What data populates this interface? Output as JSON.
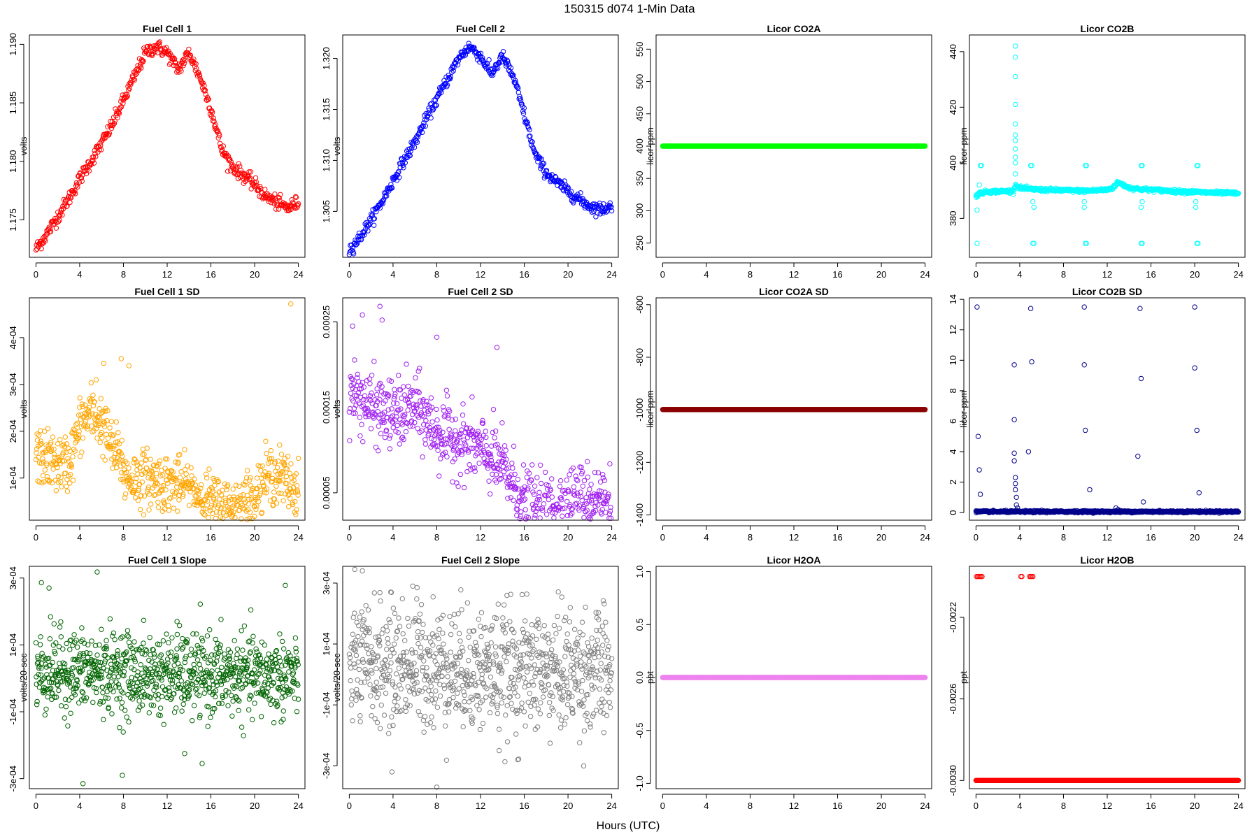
{
  "figure": {
    "title": "150315   d074   1-Min Data",
    "xlabel": "Hours (UTC)"
  },
  "chart_data": [
    {
      "type": "scatter",
      "title": "Fuel Cell 1",
      "ylabel": "volts",
      "color": "#ff0000",
      "xlim": [
        -0.6,
        24.6
      ],
      "ylim": [
        1.1718,
        1.1908
      ],
      "xticks": [
        0,
        4,
        8,
        12,
        16,
        20,
        24
      ],
      "yticks": [
        1.175,
        1.18,
        1.185,
        1.19
      ],
      "yticklabels": [
        "1.175",
        "1.180",
        "1.185",
        "1.190"
      ],
      "curve": {
        "x": [
          0,
          1,
          2,
          3,
          4,
          5,
          6,
          7,
          8,
          9,
          10,
          11,
          12,
          13,
          14,
          15,
          16,
          17,
          18,
          19,
          20,
          21,
          22,
          23,
          24
        ],
        "y": [
          1.1725,
          1.1738,
          1.1753,
          1.1768,
          1.1785,
          1.18,
          1.1815,
          1.1832,
          1.1852,
          1.1872,
          1.1893,
          1.1898,
          1.1893,
          1.1878,
          1.1893,
          1.1872,
          1.1845,
          1.181,
          1.1795,
          1.1788,
          1.178,
          1.177,
          1.1765,
          1.176,
          1.1765
        ]
      },
      "noise": 0.0003,
      "n": 480
    },
    {
      "type": "scatter",
      "title": "Fuel Cell 2",
      "ylabel": "volts",
      "color": "#0000ff",
      "xlim": [
        -0.6,
        24.6
      ],
      "ylim": [
        1.3005,
        1.3223
      ],
      "xticks": [
        0,
        4,
        8,
        12,
        16,
        20,
        24
      ],
      "yticks": [
        1.305,
        1.31,
        1.315,
        1.32
      ],
      "yticklabels": [
        "1.305",
        "1.310",
        "1.315",
        "1.320"
      ],
      "curve": {
        "x": [
          0,
          1,
          2,
          3,
          4,
          5,
          6,
          7,
          8,
          9,
          10,
          11,
          12,
          13,
          14,
          15,
          16,
          17,
          18,
          19,
          20,
          21,
          22,
          23,
          24
        ],
        "y": [
          1.3012,
          1.3025,
          1.3042,
          1.306,
          1.308,
          1.31,
          1.3118,
          1.314,
          1.316,
          1.318,
          1.32,
          1.3212,
          1.3202,
          1.3185,
          1.3202,
          1.3182,
          1.3145,
          1.3105,
          1.3088,
          1.3078,
          1.307,
          1.3062,
          1.3055,
          1.3052,
          1.3055
        ]
      },
      "noise": 0.0003,
      "n": 480
    },
    {
      "type": "scatter",
      "title": "Licor CO2A",
      "ylabel": "licor-ppm",
      "color": "#00ff00",
      "xlim": [
        -0.6,
        24.6
      ],
      "ylim": [
        228,
        572
      ],
      "xticks": [
        0,
        4,
        8,
        12,
        16,
        20,
        24
      ],
      "yticks": [
        250,
        300,
        350,
        400,
        450,
        500,
        550
      ],
      "yticklabels": [
        "250",
        "300",
        "350",
        "400",
        "450",
        "500",
        "550"
      ],
      "curve": {
        "x": [
          0,
          24
        ],
        "y": [
          400,
          400
        ]
      },
      "noise": 0,
      "n": 480
    },
    {
      "type": "scatter",
      "title": "Licor CO2B",
      "ylabel": "licor-ppm",
      "color": "#00ffff",
      "xlim": [
        -0.6,
        24.6
      ],
      "ylim": [
        366,
        446
      ],
      "xticks": [
        0,
        4,
        8,
        12,
        16,
        20,
        24
      ],
      "yticks": [
        380,
        400,
        420,
        440
      ],
      "yticklabels": [
        "380",
        "400",
        "420",
        "440"
      ],
      "curve": {
        "x": [
          0,
          0.3,
          1,
          2,
          3.4,
          3.6,
          4,
          5,
          6,
          8,
          10,
          12,
          12.5,
          13,
          13.5,
          14,
          15,
          16,
          18,
          20,
          22,
          24
        ],
        "y": [
          388,
          389,
          389.6,
          389.7,
          389.8,
          392,
          391,
          390.5,
          390.3,
          390.1,
          389.9,
          390.3,
          391,
          393,
          392,
          391,
          390.5,
          390.3,
          389.8,
          389.5,
          389.2,
          389
        ],
        "curve_note": ""
      },
      "noise": 0.3,
      "n": 600,
      "extras": [
        [
          0.1,
          371
        ],
        [
          0.1,
          383
        ],
        [
          0.3,
          392
        ],
        [
          0.4,
          399
        ],
        [
          0.5,
          399
        ],
        [
          3.6,
          396
        ],
        [
          3.6,
          400
        ],
        [
          3.6,
          402
        ],
        [
          3.6,
          405
        ],
        [
          3.6,
          408
        ],
        [
          3.6,
          410
        ],
        [
          3.6,
          414
        ],
        [
          3.6,
          421
        ],
        [
          3.6,
          431
        ],
        [
          3.6,
          438
        ],
        [
          3.6,
          442
        ],
        [
          5.0,
          399
        ],
        [
          5.1,
          399
        ],
        [
          5.2,
          386
        ],
        [
          5.3,
          384
        ],
        [
          5.2,
          371
        ],
        [
          5.3,
          371
        ],
        [
          9.9,
          384
        ],
        [
          9.9,
          386
        ],
        [
          10.0,
          399
        ],
        [
          10.1,
          399
        ],
        [
          10.0,
          371
        ],
        [
          10.1,
          371
        ],
        [
          15.1,
          384
        ],
        [
          15.2,
          386
        ],
        [
          15.1,
          399
        ],
        [
          15.2,
          399
        ],
        [
          15.1,
          371
        ],
        [
          15.2,
          371
        ],
        [
          20.1,
          384
        ],
        [
          20.1,
          386
        ],
        [
          20.2,
          399
        ],
        [
          20.3,
          399
        ],
        [
          20.2,
          371
        ],
        [
          20.3,
          371
        ]
      ]
    },
    {
      "type": "scatter",
      "title": "Fuel Cell 1 SD",
      "ylabel": "volts",
      "color": "#ffa500",
      "xlim": [
        -0.6,
        24.6
      ],
      "ylim": [
        1e-05,
        0.000485
      ],
      "xticks": [
        0,
        4,
        8,
        12,
        16,
        20,
        24
      ],
      "yticks": [
        0.0001,
        0.0002,
        0.0003,
        0.0004
      ],
      "yticklabels": [
        "1e-04",
        "2e-04",
        "3e-04",
        "4e-04"
      ],
      "curve": {
        "x": [
          0,
          1,
          2,
          3,
          4,
          5,
          6,
          7,
          7.8,
          8.2,
          10,
          12,
          14,
          15,
          16,
          17,
          18,
          19,
          20,
          21,
          22,
          23,
          24
        ],
        "y": [
          0.00015,
          0.00014,
          0.00013,
          0.00013,
          0.00021,
          0.00024,
          0.00022,
          0.00016,
          0.00014,
          0.0001,
          0.0001,
          9e-05,
          8e-05,
          6e-05,
          5e-05,
          4e-05,
          4e-05,
          5e-05,
          6e-05,
          0.0001,
          0.00011,
          9e-05,
          7e-05
        ]
      },
      "noise": 3e-05,
      "n": 700,
      "extras": [
        [
          23.3,
          0.000472
        ],
        [
          7.8,
          0.000355
        ],
        [
          8.5,
          0.00034
        ],
        [
          6.2,
          0.000345
        ],
        [
          5.5,
          0.00031
        ]
      ]
    },
    {
      "type": "scatter",
      "title": "Fuel Cell 2 SD",
      "ylabel": "volts",
      "color": "#a020f0",
      "xlim": [
        -0.6,
        24.6
      ],
      "ylim": [
        1.8e-05,
        0.000278
      ],
      "xticks": [
        0,
        4,
        8,
        12,
        16,
        20,
        24
      ],
      "yticks": [
        5e-05,
        0.00015,
        0.00025
      ],
      "yticklabels": [
        "0.00005",
        "0.00015",
        "0.00025"
      ],
      "curve": {
        "x": [
          0,
          2,
          4,
          6,
          8,
          10,
          12,
          14,
          15,
          16,
          17,
          18,
          20,
          22,
          24
        ],
        "y": [
          0.00017,
          0.00015,
          0.00014,
          0.00015,
          0.00012,
          0.00011,
          0.0001,
          8e-05,
          6e-05,
          4e-05,
          3e-05,
          3e-05,
          4e-05,
          4.5e-05,
          4e-05
        ]
      },
      "noise": 2e-05,
      "n": 700,
      "extras": [
        [
          2.8,
          0.000268
        ],
        [
          1.2,
          0.000258
        ],
        [
          3.0,
          0.000252
        ],
        [
          0.3,
          0.000245
        ],
        [
          8,
          0.000232
        ],
        [
          13.5,
          0.00022
        ]
      ]
    },
    {
      "type": "scatter",
      "title": "Licor CO2A SD",
      "ylabel": "licor-ppm",
      "color": "#8b0000",
      "xlim": [
        -0.6,
        24.6
      ],
      "ylim": [
        -1420,
        -574
      ],
      "xticks": [
        0,
        4,
        8,
        12,
        16,
        20,
        24
      ],
      "yticks": [
        -1400,
        -1200,
        -1000,
        -800,
        -600
      ],
      "yticklabels": [
        "-1400",
        "-1200",
        "-1000",
        "-800",
        "-600"
      ],
      "curve": {
        "x": [
          0,
          24
        ],
        "y": [
          -999,
          -999
        ]
      },
      "noise": 0,
      "n": 480
    },
    {
      "type": "scatter",
      "title": "Licor CO2B SD",
      "ylabel": "licor-ppm",
      "color": "#00008b",
      "xlim": [
        -0.6,
        24.6
      ],
      "ylim": [
        -0.5,
        14.1
      ],
      "xticks": [
        0,
        4,
        8,
        12,
        16,
        20,
        24
      ],
      "yticks": [
        0,
        2,
        4,
        6,
        8,
        10,
        12,
        14
      ],
      "yticklabels": [
        "0",
        "2",
        "4",
        "6",
        "8",
        "10",
        "12",
        "14"
      ],
      "curve": {
        "x": [
          0,
          24
        ],
        "y": [
          0.06,
          0.06
        ]
      },
      "noise": 0.03,
      "n": 700,
      "extras": [
        [
          0.1,
          13.5
        ],
        [
          0.2,
          5.0
        ],
        [
          0.3,
          2.8
        ],
        [
          0.4,
          1.2
        ],
        [
          3.5,
          9.7
        ],
        [
          3.5,
          6.1
        ],
        [
          3.5,
          3.9
        ],
        [
          3.5,
          3.4
        ],
        [
          3.6,
          2.3
        ],
        [
          3.6,
          1.9
        ],
        [
          3.6,
          1.5
        ],
        [
          3.7,
          1.0
        ],
        [
          3.7,
          0.5
        ],
        [
          3.8,
          0.3
        ],
        [
          4.8,
          4.0
        ],
        [
          5.0,
          13.4
        ],
        [
          5.1,
          9.9
        ],
        [
          9.9,
          13.5
        ],
        [
          9.9,
          9.7
        ],
        [
          10.0,
          5.4
        ],
        [
          10.4,
          1.5
        ],
        [
          12.8,
          0.3
        ],
        [
          14.8,
          3.7
        ],
        [
          15.0,
          13.4
        ],
        [
          15.1,
          8.8
        ],
        [
          15.3,
          0.7
        ],
        [
          20.0,
          13.5
        ],
        [
          20.0,
          9.5
        ],
        [
          20.2,
          5.4
        ],
        [
          20.4,
          1.3
        ],
        [
          6,
          0.15
        ],
        [
          9,
          0.12
        ],
        [
          13,
          0.2
        ],
        [
          16.8,
          0.14
        ]
      ]
    },
    {
      "type": "scatter",
      "title": "Fuel Cell 1 Slope",
      "ylabel": "volts/20-sec",
      "color": "#006400",
      "xlim": [
        -0.6,
        24.6
      ],
      "ylim": [
        -0.00033,
        0.000335
      ],
      "xticks": [
        0,
        4,
        8,
        12,
        16,
        20,
        24
      ],
      "yticks": [
        -0.0003,
        -0.0001,
        0.0001,
        0.0003
      ],
      "yticklabels": [
        "-3e-04",
        "-1e-04",
        "1e-04",
        "3e-04"
      ],
      "curve": {
        "x": [
          0,
          8,
          9,
          24
        ],
        "y": [
          2e-05,
          2e-05,
          1e-05,
          5e-06
        ]
      },
      "noise": 6e-05,
      "n": 900,
      "extras": [
        [
          5.6,
          0.000318
        ],
        [
          0.5,
          0.000286
        ],
        [
          1.2,
          0.00027
        ],
        [
          22.8,
          0.000278
        ],
        [
          4.3,
          -0.000315
        ],
        [
          7.9,
          -0.00029
        ],
        [
          15.2,
          -0.000255
        ],
        [
          13.6,
          -0.000225
        ],
        [
          12.9,
          0.00017
        ]
      ]
    },
    {
      "type": "scatter",
      "title": "Fuel Cell 2 Slope",
      "ylabel": "volts/20-sec",
      "color": "#808080",
      "xlim": [
        -0.6,
        24.6
      ],
      "ylim": [
        -0.000375,
        0.000355
      ],
      "xticks": [
        0,
        4,
        8,
        12,
        16,
        20,
        24
      ],
      "yticks": [
        -0.0003,
        -0.0001,
        0.0001,
        0.0003
      ],
      "yticklabels": [
        "-3e-04",
        "-1e-04",
        "1e-04",
        "3e-04"
      ],
      "curve": {
        "x": [
          0,
          8,
          10,
          24
        ],
        "y": [
          3e-05,
          3e-05,
          2e-05,
          1e-05
        ]
      },
      "noise": 0.0001,
      "n": 900,
      "extras": [
        [
          0.5,
          0.000345
        ],
        [
          1.2,
          0.00034
        ],
        [
          5.8,
          0.00029
        ],
        [
          6.2,
          0.000285
        ],
        [
          8.0,
          -0.00037
        ],
        [
          3.9,
          -0.00032
        ],
        [
          15.4,
          -0.00028
        ],
        [
          13.7,
          -0.00025
        ]
      ]
    },
    {
      "type": "scatter",
      "title": "Licor H2OA",
      "ylabel": "ppt",
      "color": "#ee82ee",
      "xlim": [
        -0.6,
        24.6
      ],
      "ylim": [
        -1.05,
        1.05
      ],
      "xticks": [
        0,
        4,
        8,
        12,
        16,
        20,
        24
      ],
      "yticks": [
        -1,
        -0.5,
        0,
        0.5,
        1
      ],
      "yticklabels": [
        "-1.0",
        "-0.5",
        "0.0",
        "0.5",
        "1.0"
      ],
      "curve": {
        "x": [
          0,
          24
        ],
        "y": [
          0,
          0
        ]
      },
      "noise": 0,
      "n": 480
    },
    {
      "type": "scatter",
      "title": "Licor H2OB",
      "ylabel": "ppt",
      "color": "#ff0000",
      "xlim": [
        -0.6,
        24.6
      ],
      "ylim": [
        -0.00304,
        -0.00195
      ],
      "xticks": [
        0,
        4,
        8,
        12,
        16,
        20,
        24
      ],
      "yticks": [
        -0.003,
        -0.0026,
        -0.0022
      ],
      "yticklabels": [
        "-0.0030",
        "-0.0026",
        "-0.0022"
      ],
      "curve": {
        "x": [
          0,
          24
        ],
        "y": [
          -0.003,
          -0.003
        ]
      },
      "noise": 0,
      "n": 480,
      "extras": [
        [
          0.05,
          -0.002
        ],
        [
          0.15,
          -0.002
        ],
        [
          0.25,
          -0.002
        ],
        [
          0.35,
          -0.002
        ],
        [
          0.45,
          -0.002
        ],
        [
          0.55,
          -0.002
        ],
        [
          4.1,
          -0.002
        ],
        [
          4.2,
          -0.002
        ],
        [
          4.9,
          -0.002
        ],
        [
          5.0,
          -0.002
        ],
        [
          5.1,
          -0.002
        ],
        [
          5.2,
          -0.002
        ]
      ]
    }
  ]
}
